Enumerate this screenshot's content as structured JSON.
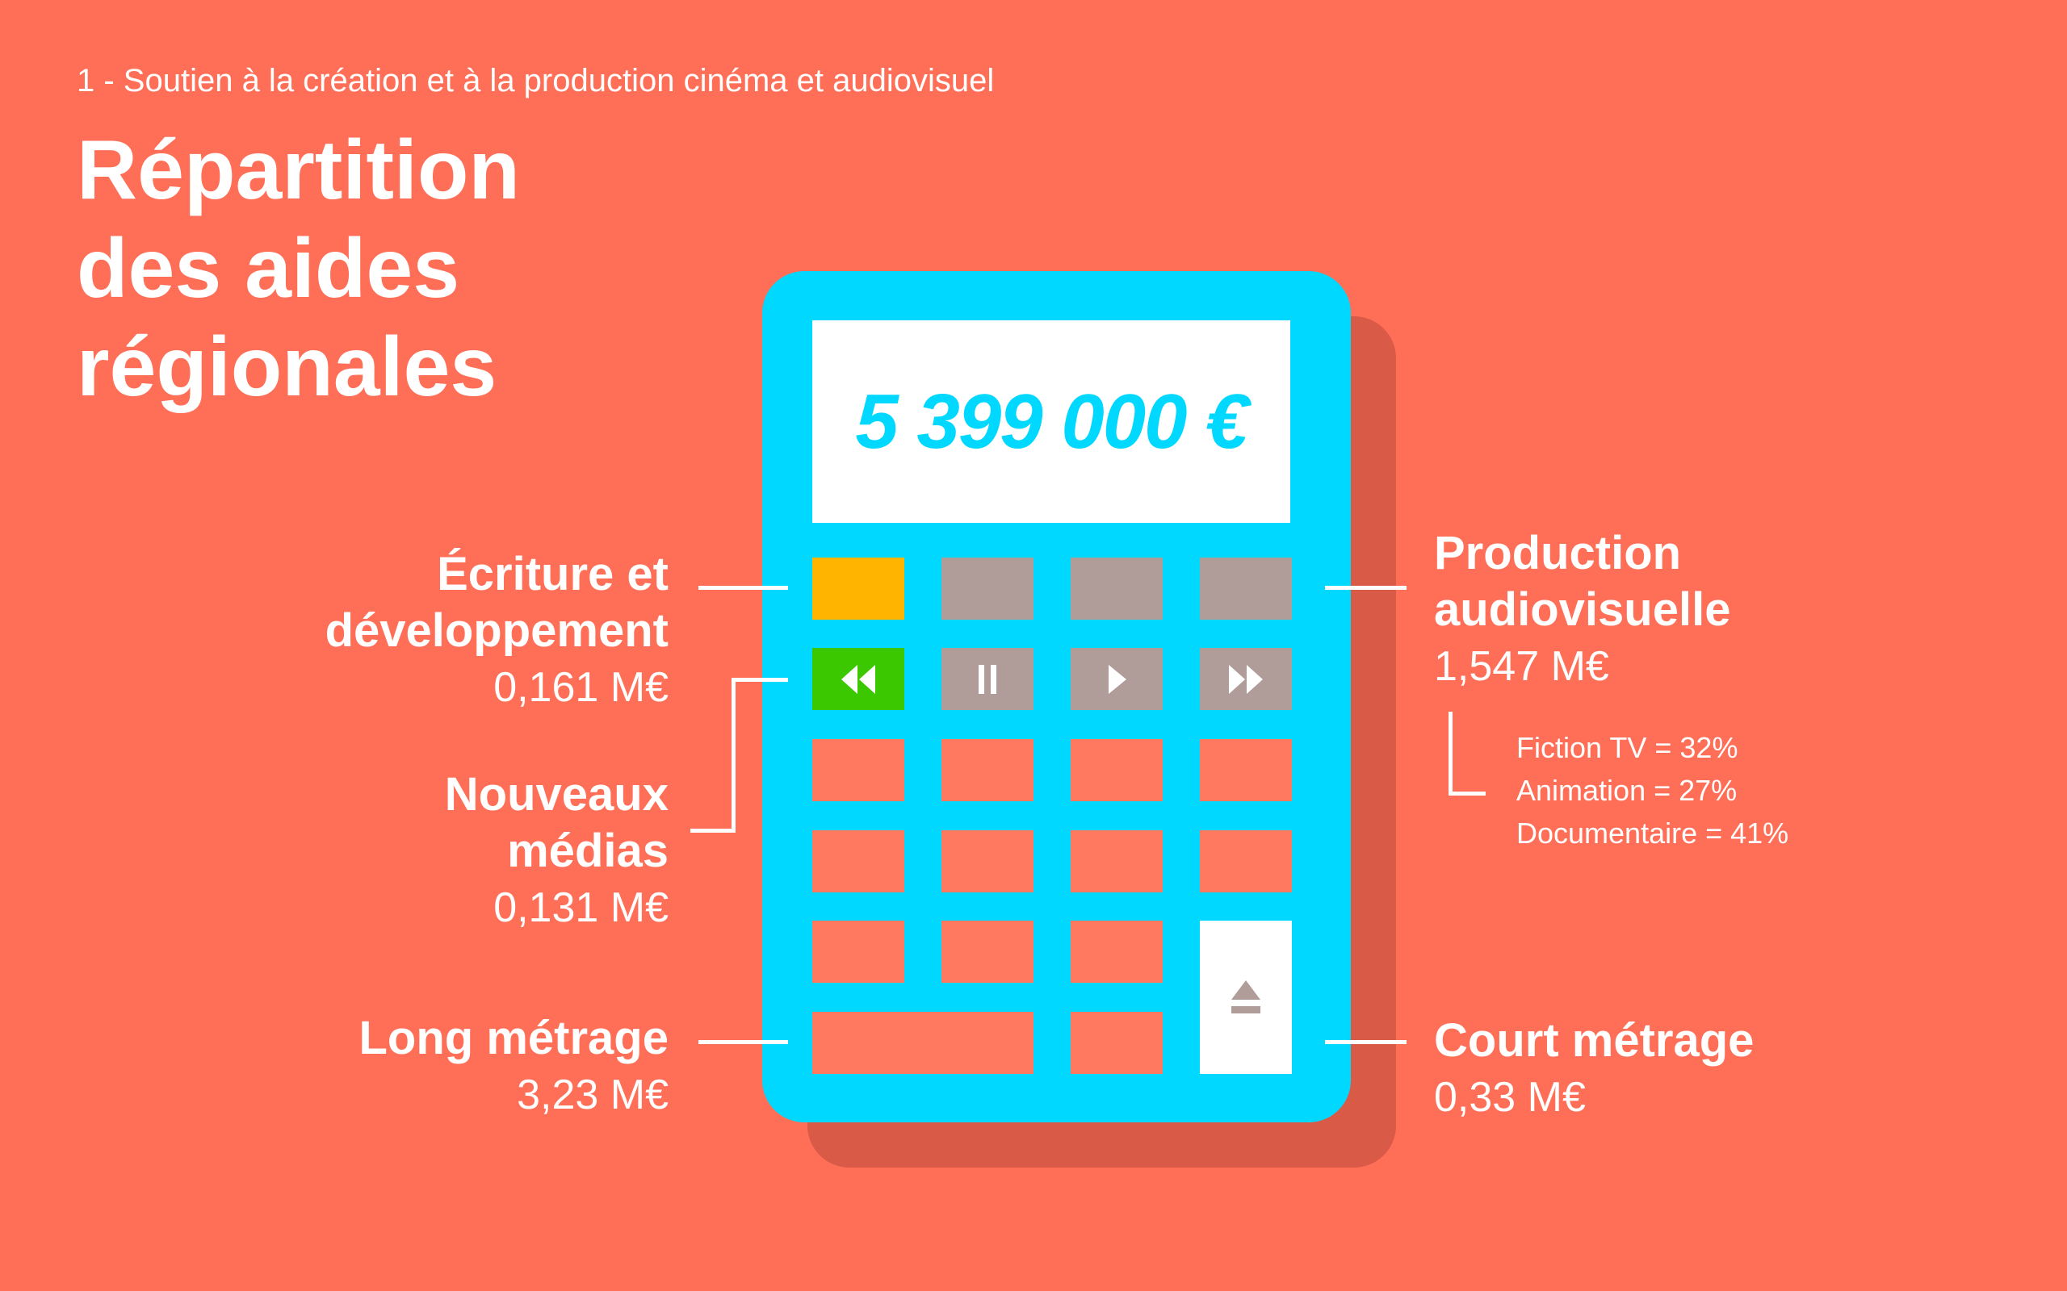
{
  "header": {
    "subtitle": "1 - Soutien à la création et à la production cinéma et audiovisuel",
    "title_lines": [
      "Répartition",
      "des aides",
      "régionales"
    ]
  },
  "calculator": {
    "display": "5 399 000 €",
    "colors": {
      "body": "#00d8ff",
      "shadow": "#d95a47",
      "highlight_orange": "#ffb400",
      "highlight_green": "#3cc800",
      "gray_key": "#b09c99",
      "key": "#ff7961",
      "background": "#ff6e56"
    },
    "icons": [
      "rewind-icon",
      "pause-icon",
      "play-icon",
      "fast-forward-icon",
      "eject-icon"
    ]
  },
  "categories": {
    "ecriture": {
      "label_lines": [
        "Écriture et",
        "développement"
      ],
      "value": "0,161 M€"
    },
    "nouveaux_medias": {
      "label_lines": [
        "Nouveaux",
        "médias"
      ],
      "value": "0,131 M€"
    },
    "long_metrage": {
      "label_lines": [
        "Long métrage"
      ],
      "value": "3,23 M€"
    },
    "production_av": {
      "label_lines": [
        "Production",
        "audiovisuelle"
      ],
      "value": "1,547 M€",
      "breakdown": [
        "Fiction TV = 32%",
        "Animation = 27%",
        "Documentaire = 41%"
      ]
    },
    "court_metrage": {
      "label_lines": [
        "Court métrage"
      ],
      "value": "0,33 M€"
    }
  }
}
